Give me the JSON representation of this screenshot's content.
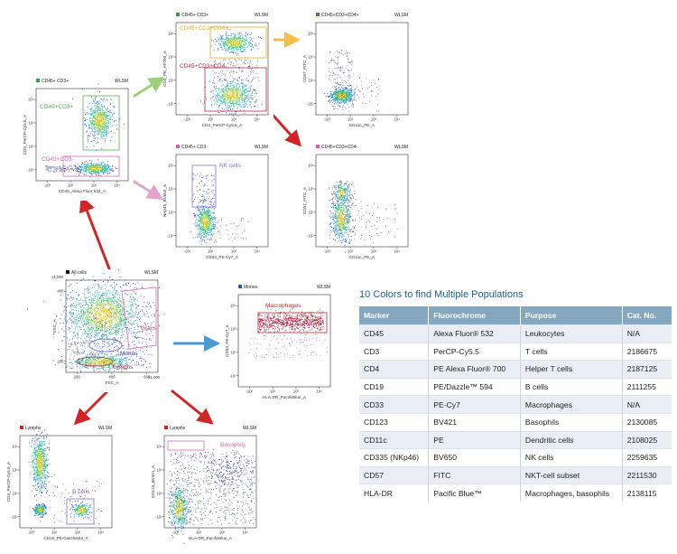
{
  "colors": {
    "arrow_red": "#d22626",
    "arrow_green": "#9ed07a",
    "arrow_orange": "#f2c04a",
    "arrow_pink": "#e4a4cf",
    "arrow_blue": "#4a9ad6",
    "table_header": "#86a7c0",
    "table_title": "#1b5f86"
  },
  "plots": {
    "cd45cd3": {
      "title": "CD45+ CD3+",
      "flag": "WLSM",
      "xlabel": "CD45_Alexa Fluor 532_A",
      "ylabel": "CD3_PerCP-Cy5.5_A",
      "xticks": [
        "-10³",
        "10²",
        "10³",
        "10⁴"
      ],
      "yticks": [
        "10⁴",
        "10³",
        "10²",
        "-10²"
      ],
      "gate1": "CD45+CD3+",
      "gate2": "CD45+CD3-",
      "swatch": "#2aa84a"
    },
    "cd3pos": {
      "title": "CD45+ CD3+",
      "flag": "WLSM",
      "xlabel": "CD3_PerCP-Cy5.5_A",
      "ylabel": "CD4_PE_AF700_A",
      "xticks": [
        "-10³",
        "10²",
        "10³",
        "10⁴"
      ],
      "yticks": [
        "10⁴",
        "10³",
        "10²",
        "-10²"
      ],
      "gate1": "CD45+CD3+CD4+",
      "gate2": "CD45+CD3+CD4-",
      "swatch": "#2aa84a"
    },
    "cd4pos": {
      "title": "CD45+CD3+CD4+",
      "flag": "WLSM",
      "xlabel": "CD11c_PE_A",
      "ylabel": "CD57_FITC_A",
      "xticks": [
        "-10³",
        "10²",
        "10³",
        "10⁴"
      ],
      "yticks": [
        "10⁴",
        "10³",
        "10²",
        "-10²"
      ],
      "swatch": "#8a6a3a"
    },
    "cd3neg": {
      "title": "CD45+ CD3-",
      "flag": "WLSM",
      "xlabel": "CD33_PE-Cy7_A",
      "ylabel": "NKp46_BV650_A",
      "xticks": [
        "-10³",
        "10²",
        "10³",
        "10⁴"
      ],
      "yticks": [
        "10⁴",
        "10³",
        "10²",
        "-10²"
      ],
      "gate1": "NK cells",
      "swatch": "#d65cb4"
    },
    "cd4neg": {
      "title": "CD45+CD3+CD4-",
      "flag": "WLSM",
      "xlabel": "CD11c_PE_A",
      "ylabel": "CD57_FITC_A",
      "xticks": [
        "-10³",
        "10²",
        "10³",
        "10⁴"
      ],
      "yticks": [
        "10⁴",
        "10³",
        "10²",
        "-10²"
      ],
      "swatch": "#d65cb4"
    },
    "allcells": {
      "title": "All cells",
      "flag": "WLSM",
      "xlabel": "FSC_A",
      "ylabel": "SSC_A",
      "xunit": "x1,000",
      "yunit": "x1,000",
      "xticks": [
        "200",
        "400",
        "600"
      ],
      "yticks": [
        "400",
        "200"
      ],
      "gate_grans": "Grans",
      "gate_monos": "Monos",
      "gate_lymphs": "Lymphs",
      "swatch": "#111111"
    },
    "monos": {
      "title": "Monos",
      "flag": "WLSM",
      "xlabel": "HLA-DR_PacificBlue_A",
      "ylabel": "CD33_PE-Cy7_A",
      "xticks": [
        "-10³",
        "10²",
        "10³",
        "10⁴"
      ],
      "yticks": [
        "10⁴",
        "10³",
        "10²",
        "-10²"
      ],
      "gate1": "Macrophages",
      "swatch": "#2a58a8"
    },
    "lymphs1": {
      "title": "Lymphs",
      "flag": "WLSM",
      "xlabel": "CD19_PE-Dazzle594_A",
      "ylabel": "CD3_PerCP-Cy5.5_A",
      "xticks": [
        "-10³",
        "10²",
        "10³",
        "10⁴"
      ],
      "yticks": [
        "10⁴",
        "10³",
        "10²",
        "-10²"
      ],
      "gate1": "B cells",
      "swatch": "#d22626"
    },
    "lymphs2": {
      "title": "Lymphs",
      "flag": "WLSM",
      "xlabel": "HLA-DR_PacificBlue_A",
      "ylabel": "CD123_BV421_A",
      "xticks": [
        "-10³",
        "10²",
        "10³",
        "10⁴"
      ],
      "yticks": [
        "10⁴",
        "10³",
        "10²",
        "-10²"
      ],
      "gate1": "Basophils",
      "swatch": "#d22626"
    }
  },
  "table": {
    "title": "10 Colors to find Multiple Populations",
    "headers": [
      "Marker",
      "Fluorochrome",
      "Purpose",
      "Cat. No."
    ],
    "rows": [
      [
        "CD45",
        "Alexa Fluor® 532",
        "Leukocytes",
        "N/A"
      ],
      [
        "CD3",
        "PerCP-Cy5.5",
        "T cells",
        "2186675"
      ],
      [
        "CD4",
        "PE Alexa Fluor® 700",
        "Helper T cells",
        "2187125"
      ],
      [
        "CD19",
        "PE/Dazzle™ 594",
        "B cells",
        "2111255"
      ],
      [
        "CD33",
        "PE-Cy7",
        "Macrophages",
        "N/A"
      ],
      [
        "CD123",
        "BV421",
        "Basophils",
        "2130085"
      ],
      [
        "CD11c",
        "PE",
        "Dendritic cells",
        "2108025"
      ],
      [
        "CD335 (NKp46)",
        "BV650",
        "NK cells",
        "2259635"
      ],
      [
        "CD57",
        "FITC",
        "NKT-cell subset",
        "2211530"
      ],
      [
        "HLA-DR",
        "Pacific Blue™",
        "Macrophages, basophils",
        "2138115"
      ]
    ]
  }
}
